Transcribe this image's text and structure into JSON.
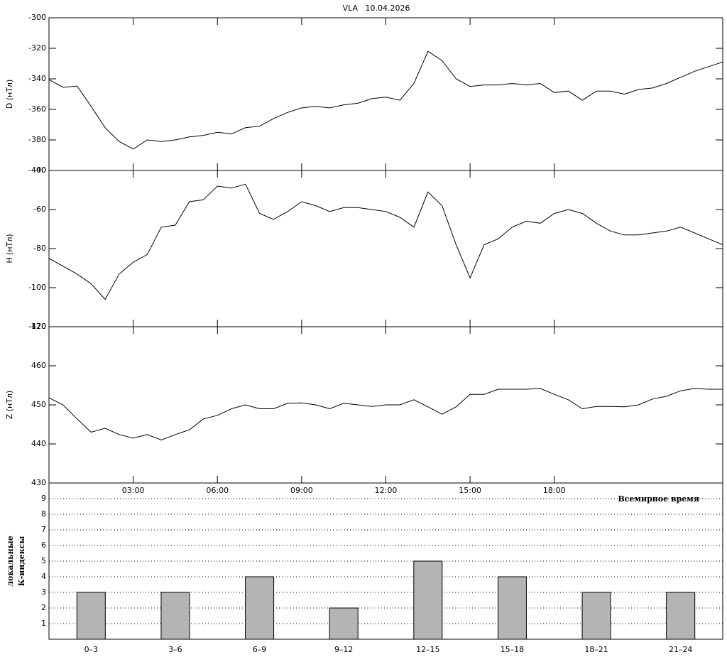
{
  "chart_data": [
    {
      "type": "line",
      "title": "VLA   10.04.2026",
      "ylabel": "D (нТл)",
      "x": [
        0,
        0.5,
        1,
        1.5,
        2,
        2.5,
        3,
        3.5,
        4,
        4.5,
        5,
        5.5,
        6,
        6.5,
        7,
        7.5,
        8,
        8.5,
        9,
        9.5,
        10,
        10.5,
        11,
        11.5,
        12,
        12.5,
        13,
        13.5,
        14,
        14.5,
        15,
        15.5,
        16,
        16.5,
        17,
        17.5,
        18,
        18.5,
        19,
        19.5,
        20,
        20.5,
        21,
        21.5,
        22,
        22.5,
        23,
        23.5,
        24
      ],
      "series": [
        {
          "color": "#000000",
          "values": [
            -340.5,
            -345.6,
            -344.7,
            -358,
            -372,
            -381,
            -386,
            -380,
            -381,
            -380,
            -378,
            -377,
            -375,
            -376,
            -372,
            -371,
            -366,
            -362,
            -359,
            -358,
            -359,
            -357,
            -356,
            -353,
            -352,
            -354,
            -343,
            -322,
            -328,
            -340,
            -345,
            -344,
            -344,
            -343,
            -344,
            -343,
            -349,
            -348,
            -354,
            -348,
            -348,
            -350,
            -347,
            -346,
            -343,
            -339,
            -335,
            -332,
            -329
          ]
        }
      ],
      "xlim": [
        0,
        24
      ],
      "xticks": [
        3,
        6,
        9,
        12,
        15,
        18
      ],
      "ylim": [
        -400,
        -300
      ],
      "yticks": [
        -300,
        -320,
        -340,
        -360,
        -380,
        -400
      ]
    },
    {
      "type": "line",
      "ylabel": "H (нТл)",
      "x": [
        0,
        0.5,
        1,
        1.5,
        2,
        2.5,
        3,
        3.5,
        4,
        4.5,
        5,
        5.5,
        6,
        6.5,
        7,
        7.5,
        8,
        8.5,
        9,
        9.5,
        10,
        10.5,
        11,
        11.5,
        12,
        12.5,
        13,
        13.5,
        14,
        14.5,
        15,
        15.5,
        16,
        16.5,
        17,
        17.5,
        18,
        18.5,
        19,
        19.5,
        20,
        20.5,
        21,
        21.5,
        22,
        22.5,
        23,
        23.5,
        24
      ],
      "series": [
        {
          "color": "#000000",
          "values": [
            -85,
            -89,
            -93,
            -98,
            -106,
            -93,
            -87,
            -83,
            -69,
            -68,
            -56,
            -55,
            -48,
            -49,
            -47,
            -62,
            -65,
            -61,
            -56,
            -58,
            -61,
            -59,
            -59,
            -60,
            -61,
            -64,
            -69,
            -51,
            -58,
            -78,
            -95,
            -78,
            -75,
            -69,
            -66,
            -67,
            -62,
            -60,
            -62,
            -67,
            -71,
            -73,
            -73,
            -72,
            -71,
            -69,
            -72,
            -75,
            -78
          ]
        }
      ],
      "xlim": [
        0,
        24
      ],
      "xticks": [
        3,
        6,
        9,
        12,
        15,
        18
      ],
      "ylim": [
        -120,
        -40
      ],
      "yticks": [
        -40,
        -60,
        -80,
        -100,
        -120
      ]
    },
    {
      "type": "line",
      "ylabel": "Z (нТл)",
      "xlabel": "Всемирное время",
      "x": [
        0,
        0.5,
        1,
        1.5,
        2,
        2.5,
        3,
        3.5,
        4,
        4.5,
        5,
        5.5,
        6,
        6.5,
        7,
        7.5,
        8,
        8.5,
        9,
        9.5,
        10,
        10.5,
        11,
        11.5,
        12,
        12.5,
        13,
        13.5,
        14,
        14.5,
        15,
        15.5,
        16,
        16.5,
        17,
        17.5,
        18,
        18.5,
        19,
        19.5,
        20,
        20.5,
        21,
        21.5,
        22,
        22.5,
        23,
        23.5,
        24
      ],
      "series": [
        {
          "color": "#000000",
          "values": [
            451.8,
            450,
            446.4,
            443,
            444,
            442.4,
            441.5,
            442.4,
            441,
            442.4,
            443.6,
            446.4,
            447.3,
            449,
            450,
            449,
            449,
            450.4,
            450.5,
            450,
            449,
            450.4,
            450,
            449.6,
            450,
            450,
            451.3,
            449.5,
            447.6,
            449.5,
            452.7,
            452.7,
            454,
            454,
            454,
            454.2,
            452.7,
            451.3,
            449,
            449.6,
            449.6,
            449.5,
            450,
            451.5,
            452.2,
            453.6,
            454.2,
            454,
            454
          ]
        }
      ],
      "xlim": [
        0,
        24
      ],
      "xticks": [
        {
          "value": 3,
          "label": "03:00"
        },
        {
          "value": 6,
          "label": "06:00"
        },
        {
          "value": 9,
          "label": "09:00"
        },
        {
          "value": 12,
          "label": "12:00"
        },
        {
          "value": 15,
          "label": "15:00"
        },
        {
          "value": 18,
          "label": "18:00"
        }
      ],
      "ylim": [
        430,
        470
      ],
      "yticks": [
        470,
        460,
        450,
        440,
        430
      ]
    },
    {
      "type": "bar",
      "ylabel": [
        "локальные",
        "К-индексы"
      ],
      "categories": [
        "0–3",
        "3–6",
        "6–9",
        "9–12",
        "12–15",
        "15–18",
        "18–21",
        "21–24"
      ],
      "values": [
        3,
        3,
        4,
        2,
        5,
        4,
        3,
        3
      ],
      "color": "#b4b4b4",
      "ylim": [
        0,
        10
      ],
      "yticks": [
        1,
        2,
        3,
        4,
        5,
        6,
        7,
        8,
        9
      ],
      "grid": true
    }
  ]
}
